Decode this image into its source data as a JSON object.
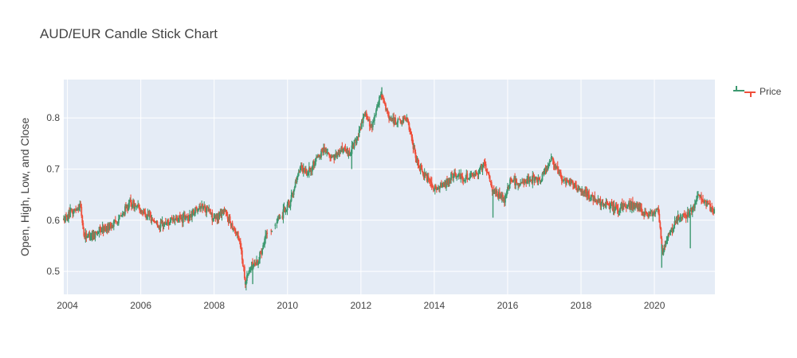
{
  "chart_data": {
    "type": "candlestick",
    "title": "AUD/EUR Candle Stick Chart",
    "ylabel": "Open, High, Low, and Close",
    "xlabel": "",
    "xlim": [
      2003.9,
      2021.65
    ],
    "ylim": [
      0.455,
      0.875
    ],
    "x_ticks": [
      2004,
      2006,
      2008,
      2010,
      2012,
      2014,
      2016,
      2018,
      2020
    ],
    "x_tick_labels": [
      "2004",
      "2006",
      "2008",
      "2010",
      "2012",
      "2014",
      "2016",
      "2018",
      "2020"
    ],
    "y_ticks": [
      0.5,
      0.6,
      0.7,
      0.8
    ],
    "y_tick_labels": [
      "0.5",
      "0.6",
      "0.7",
      "0.8"
    ],
    "grid": true,
    "legend": {
      "position": "top-right",
      "entries": [
        "Price"
      ]
    },
    "colors": {
      "increasing": "#3d9970",
      "decreasing": "#ef4f3b",
      "plot_bg": "#e5ecf6",
      "grid": "#ffffff"
    },
    "series": [
      {
        "name": "Price",
        "approx_close_path": [
          [
            2003.9,
            0.6
          ],
          [
            2004.2,
            0.62
          ],
          [
            2004.35,
            0.63
          ],
          [
            2004.45,
            0.57
          ],
          [
            2004.6,
            0.57
          ],
          [
            2004.9,
            0.58
          ],
          [
            2005.2,
            0.59
          ],
          [
            2005.5,
            0.61
          ],
          [
            2005.7,
            0.635
          ],
          [
            2006.0,
            0.62
          ],
          [
            2006.2,
            0.61
          ],
          [
            2006.5,
            0.59
          ],
          [
            2006.9,
            0.6
          ],
          [
            2007.3,
            0.605
          ],
          [
            2007.6,
            0.63
          ],
          [
            2007.85,
            0.62
          ],
          [
            2008.0,
            0.6
          ],
          [
            2008.25,
            0.62
          ],
          [
            2008.5,
            0.59
          ],
          [
            2008.7,
            0.56
          ],
          [
            2008.85,
            0.48
          ],
          [
            2009.0,
            0.51
          ],
          [
            2009.2,
            0.52
          ],
          [
            2009.4,
            0.57
          ],
          [
            2009.6,
            0.585
          ],
          [
            2009.85,
            0.61
          ],
          [
            2010.1,
            0.64
          ],
          [
            2010.35,
            0.7
          ],
          [
            2010.55,
            0.69
          ],
          [
            2010.8,
            0.72
          ],
          [
            2011.0,
            0.74
          ],
          [
            2011.2,
            0.72
          ],
          [
            2011.5,
            0.74
          ],
          [
            2011.7,
            0.73
          ],
          [
            2012.0,
            0.78
          ],
          [
            2012.1,
            0.81
          ],
          [
            2012.3,
            0.78
          ],
          [
            2012.55,
            0.85
          ],
          [
            2012.75,
            0.8
          ],
          [
            2013.0,
            0.79
          ],
          [
            2013.25,
            0.8
          ],
          [
            2013.5,
            0.72
          ],
          [
            2013.7,
            0.69
          ],
          [
            2014.0,
            0.66
          ],
          [
            2014.3,
            0.67
          ],
          [
            2014.55,
            0.69
          ],
          [
            2014.8,
            0.68
          ],
          [
            2015.1,
            0.69
          ],
          [
            2015.35,
            0.71
          ],
          [
            2015.6,
            0.66
          ],
          [
            2015.9,
            0.64
          ],
          [
            2016.1,
            0.68
          ],
          [
            2016.3,
            0.67
          ],
          [
            2016.6,
            0.68
          ],
          [
            2016.9,
            0.68
          ],
          [
            2017.2,
            0.72
          ],
          [
            2017.5,
            0.68
          ],
          [
            2017.9,
            0.665
          ],
          [
            2018.2,
            0.65
          ],
          [
            2018.6,
            0.63
          ],
          [
            2019.0,
            0.625
          ],
          [
            2019.4,
            0.63
          ],
          [
            2019.8,
            0.61
          ],
          [
            2020.1,
            0.62
          ],
          [
            2020.22,
            0.54
          ],
          [
            2020.45,
            0.58
          ],
          [
            2020.7,
            0.61
          ],
          [
            2020.95,
            0.61
          ],
          [
            2021.2,
            0.645
          ],
          [
            2021.45,
            0.63
          ],
          [
            2021.65,
            0.615
          ]
        ],
        "extreme_wicks": [
          [
            2008.85,
            0.475
          ],
          [
            2009.05,
            0.475
          ],
          [
            2020.2,
            0.507
          ],
          [
            2020.98,
            0.545
          ],
          [
            2012.57,
            0.86
          ],
          [
            2015.6,
            0.605
          ],
          [
            2011.75,
            0.7
          ]
        ]
      }
    ]
  }
}
